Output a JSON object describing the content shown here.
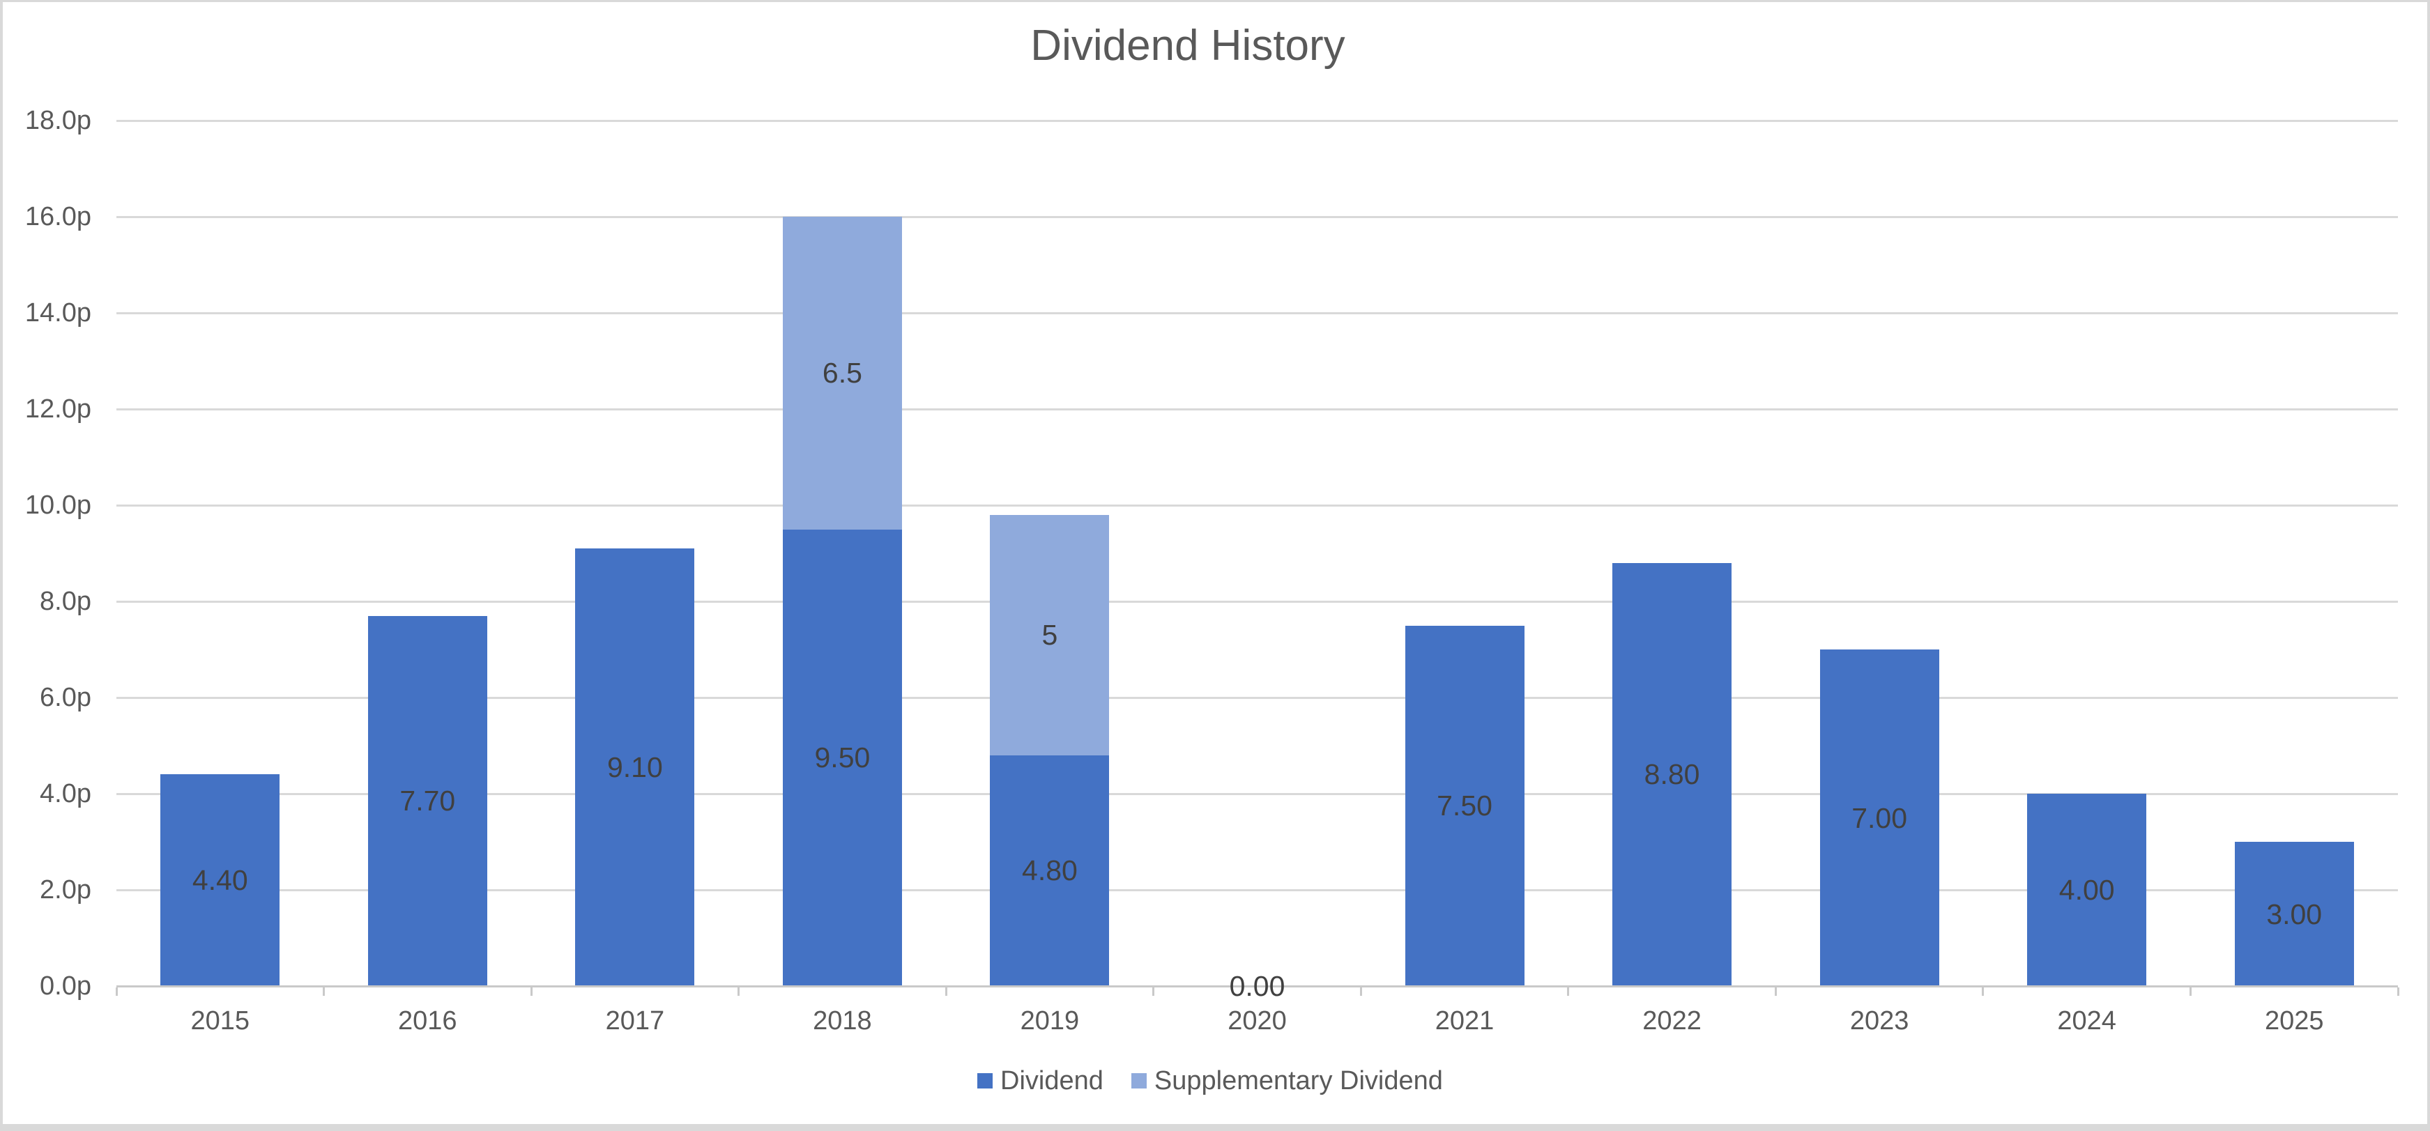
{
  "chart_data": {
    "type": "bar",
    "stacked": true,
    "title": "Dividend History",
    "categories": [
      "2015",
      "2016",
      "2017",
      "2018",
      "2019",
      "2020",
      "2021",
      "2022",
      "2023",
      "2024",
      "2025"
    ],
    "series": [
      {
        "name": "Dividend",
        "color": "#4472C4",
        "values": [
          4.4,
          7.7,
          9.1,
          9.5,
          4.8,
          0,
          7.5,
          8.8,
          7.0,
          4.0,
          3.0
        ],
        "labels": [
          "4.40",
          "7.70",
          "9.10",
          "9.50",
          "4.80",
          "0.00",
          "7.50",
          "8.80",
          "7.00",
          "4.00",
          "3.00"
        ]
      },
      {
        "name": "Supplementary Dividend",
        "color": "#8FAADC",
        "values": [
          0,
          0,
          0,
          6.5,
          5,
          0,
          0,
          0,
          0,
          0,
          0
        ],
        "labels": [
          null,
          null,
          null,
          "6.5",
          "5",
          null,
          null,
          null,
          null,
          null,
          null
        ]
      }
    ],
    "ylim": [
      0,
      18
    ],
    "ytick_step": 2,
    "ytick_labels": [
      "0.0p",
      "2.0p",
      "4.0p",
      "6.0p",
      "8.0p",
      "10.0p",
      "12.0p",
      "14.0p",
      "16.0p",
      "18.0p"
    ],
    "ytick_suffix": "p",
    "grid": true,
    "legend_position": "bottom"
  },
  "colors": {
    "gridline": "#D9D9D9",
    "axis_line": "#C9C9C9",
    "border": "#D9D9D9",
    "title_text": "#595959",
    "tick_text": "#595959",
    "data_label_text": "#404040",
    "legend_text": "#595959"
  }
}
